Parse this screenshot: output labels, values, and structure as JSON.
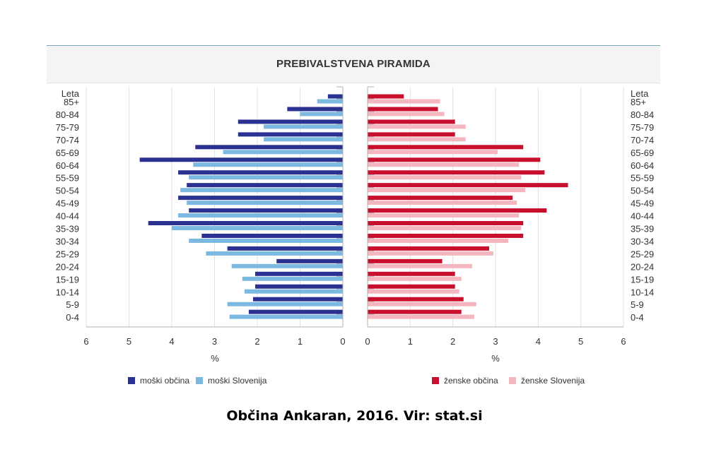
{
  "chart_data": {
    "type": "bar",
    "title": "PREBIVALSTVENA PIRAMIDA",
    "age_header": "Leta",
    "unit_label": "%",
    "categories": [
      "85+",
      "80-84",
      "75-79",
      "70-74",
      "65-69",
      "60-64",
      "55-59",
      "50-54",
      "45-49",
      "40-44",
      "35-39",
      "30-34",
      "25-29",
      "20-24",
      "15-19",
      "10-14",
      "5-9",
      "0-4"
    ],
    "x_ticks": [
      0,
      1,
      2,
      3,
      4,
      5,
      6
    ],
    "xlim": [
      0,
      6
    ],
    "grid": true,
    "legend_placement": "bottom",
    "panels": [
      {
        "side": "left",
        "series": [
          {
            "name": "moški občina",
            "color": "#2b3191",
            "values": [
              0.35,
              1.3,
              2.45,
              2.45,
              3.45,
              4.75,
              3.85,
              3.65,
              3.85,
              3.6,
              4.55,
              3.3,
              2.7,
              1.55,
              2.05,
              2.05,
              2.1,
              2.2
            ]
          },
          {
            "name": "moški Slovenija",
            "color": "#7cb9e0",
            "values": [
              0.6,
              1.0,
              1.85,
              1.85,
              2.8,
              3.5,
              3.6,
              3.8,
              3.65,
              3.85,
              4.0,
              3.6,
              3.2,
              2.6,
              2.35,
              2.3,
              2.7,
              2.65
            ]
          }
        ]
      },
      {
        "side": "right",
        "series": [
          {
            "name": "ženske občina",
            "color": "#c8102e",
            "values": [
              0.85,
              1.65,
              2.05,
              2.05,
              3.65,
              4.05,
              4.15,
              4.7,
              3.4,
              4.2,
              3.65,
              3.65,
              2.85,
              1.75,
              2.05,
              2.05,
              2.25,
              2.2
            ]
          },
          {
            "name": "ženske Slovenija",
            "color": "#f4b6bf",
            "values": [
              1.7,
              1.8,
              2.3,
              2.3,
              3.05,
              3.55,
              3.6,
              3.7,
              3.5,
              3.55,
              3.6,
              3.3,
              2.95,
              2.45,
              2.2,
              2.15,
              2.55,
              2.5
            ]
          }
        ]
      }
    ]
  },
  "footer": {
    "caption": "Občina Ankaran, 2016. Vir: stat.si"
  }
}
